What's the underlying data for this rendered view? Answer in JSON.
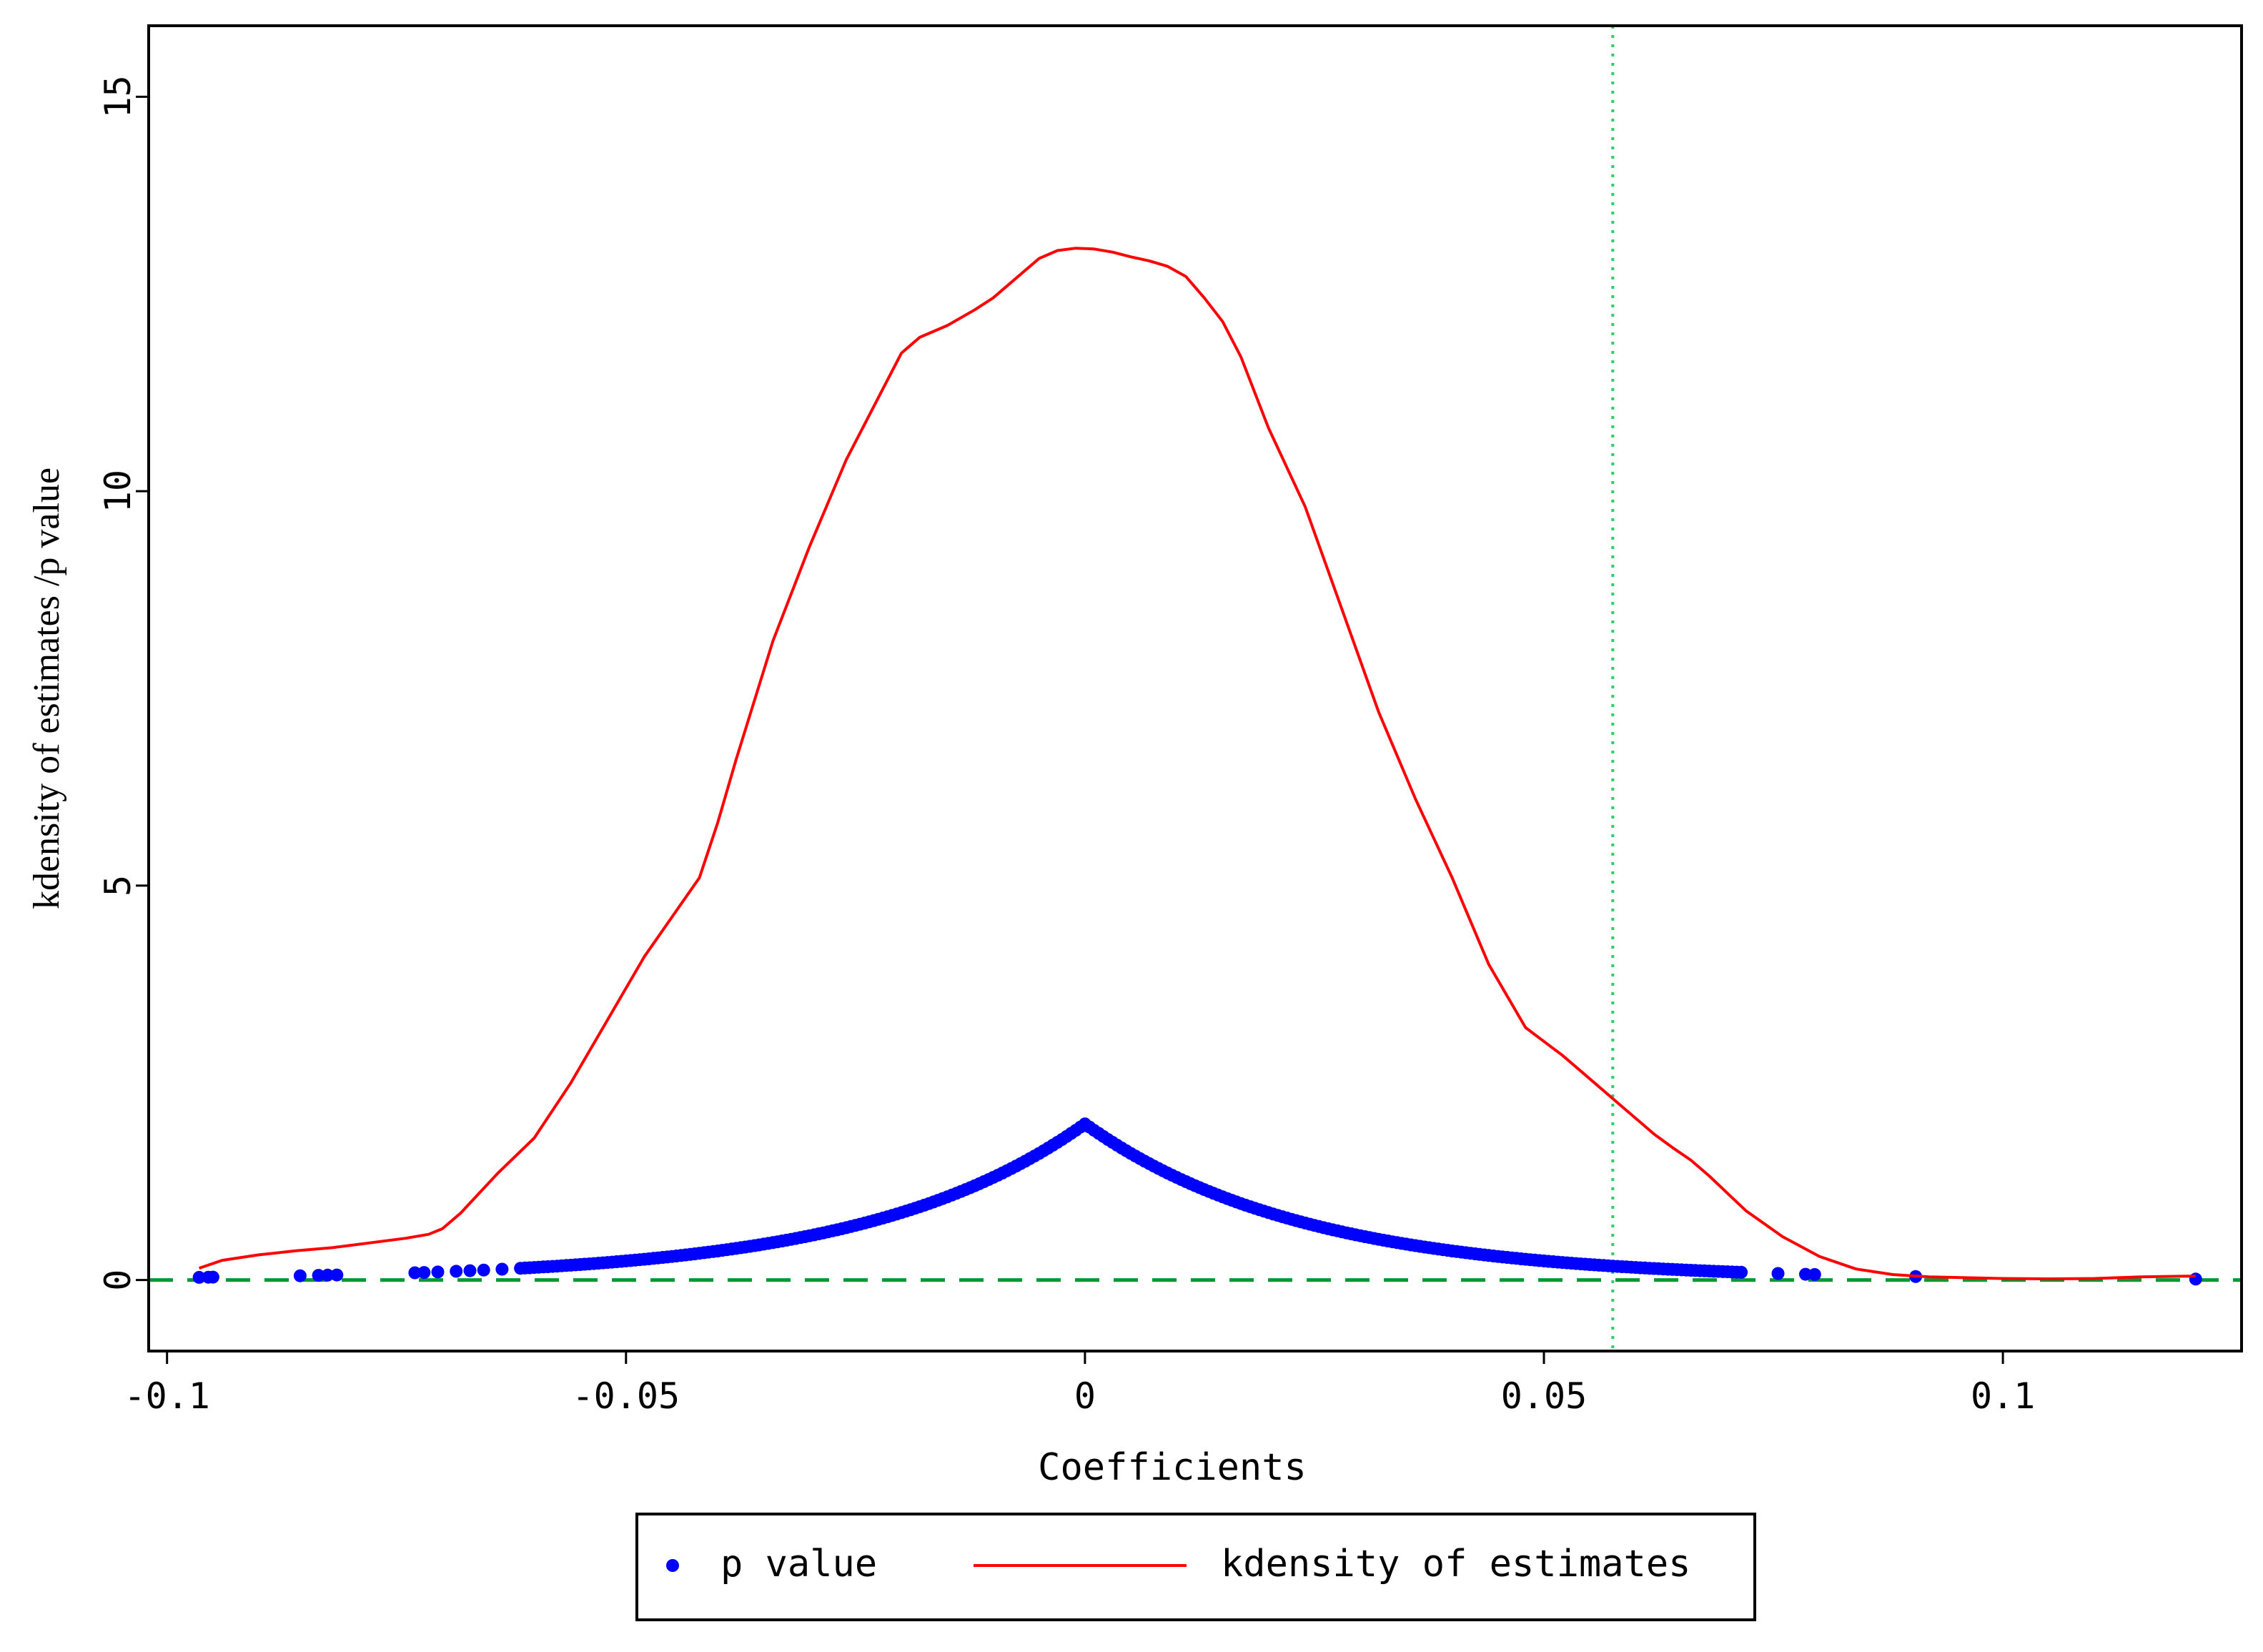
{
  "chart_data": {
    "type": "line",
    "title": "",
    "xlabel": "Coefficients",
    "ylabel": "kdensity of estimates /p value",
    "xlim": [
      -0.102,
      0.126
    ],
    "ylim": [
      -0.9,
      15.9
    ],
    "x_ticks": [
      {
        "value": -0.1,
        "label": "-0.1"
      },
      {
        "value": -0.05,
        "label": "-0.05"
      },
      {
        "value": 0,
        "label": "0"
      },
      {
        "value": 0.05,
        "label": "0.05"
      },
      {
        "value": 0.1,
        "label": "0.1"
      }
    ],
    "y_ticks": [
      {
        "value": 0,
        "label": "0"
      },
      {
        "value": 5,
        "label": "5"
      },
      {
        "value": 10,
        "label": "10"
      },
      {
        "value": 15,
        "label": "15"
      }
    ],
    "grid": false,
    "legend_position": "bottom-center",
    "reference_lines": [
      {
        "orientation": "horizontal",
        "value": 0,
        "style": "dashed",
        "color": "#009933"
      },
      {
        "orientation": "vertical",
        "value": 0.0575,
        "style": "dotted",
        "color": "#33cc66"
      }
    ],
    "series": [
      {
        "name": "p value",
        "type": "scatter",
        "color": "#0000ff",
        "points": {
          "isolated_x": [
            -0.0965,
            -0.0955,
            -0.095,
            -0.0855,
            -0.0835,
            -0.0825,
            -0.0815,
            -0.073,
            -0.072,
            -0.0705,
            -0.0685,
            -0.067,
            -0.0655,
            -0.0635,
            -0.0615,
            0.0755,
            0.0785,
            0.0795,
            0.0905,
            0.121
          ],
          "peak_y": 1.98,
          "decay_rate": 42,
          "dense_x_range": [
            -0.061,
            0.0715
          ],
          "dense_x_step": 0.0005
        }
      },
      {
        "name": "kdensity of estimates",
        "type": "line",
        "color": "#ff0000",
        "x": [
          -0.0965,
          -0.094,
          -0.09,
          -0.086,
          -0.082,
          -0.078,
          -0.074,
          -0.0715,
          -0.07,
          -0.068,
          -0.066,
          -0.064,
          -0.06,
          -0.056,
          -0.052,
          -0.048,
          -0.045,
          -0.042,
          -0.04,
          -0.038,
          -0.034,
          -0.03,
          -0.026,
          -0.022,
          -0.02,
          -0.018,
          -0.016,
          -0.015,
          -0.012,
          -0.01,
          -0.009,
          -0.007,
          -0.005,
          -0.003,
          -0.001,
          0.001,
          0.003,
          0.005,
          0.007,
          0.009,
          0.011,
          0.013,
          0.015,
          0.017,
          0.02,
          0.024,
          0.028,
          0.032,
          0.036,
          0.04,
          0.044,
          0.048,
          0.052,
          0.054,
          0.056,
          0.058,
          0.06,
          0.062,
          0.064,
          0.066,
          0.068,
          0.07,
          0.072,
          0.076,
          0.08,
          0.084,
          0.088,
          0.092,
          0.096,
          0.1,
          0.105,
          0.11,
          0.115,
          0.12,
          0.121
        ],
        "y": [
          0.15,
          0.25,
          0.32,
          0.37,
          0.41,
          0.47,
          0.53,
          0.58,
          0.65,
          0.85,
          1.1,
          1.35,
          1.8,
          2.5,
          3.3,
          4.1,
          4.6,
          5.1,
          5.8,
          6.6,
          8.1,
          9.3,
          10.4,
          11.3,
          11.75,
          11.95,
          12.05,
          12.1,
          12.3,
          12.45,
          12.55,
          12.75,
          12.95,
          13.05,
          13.08,
          13.07,
          13.03,
          12.97,
          12.92,
          12.85,
          12.72,
          12.45,
          12.15,
          11.7,
          10.8,
          9.8,
          8.5,
          7.2,
          6.1,
          5.1,
          4.0,
          3.2,
          2.85,
          2.65,
          2.45,
          2.25,
          2.05,
          1.85,
          1.68,
          1.52,
          1.32,
          1.1,
          0.88,
          0.55,
          0.3,
          0.14,
          0.07,
          0.04,
          0.03,
          0.02,
          0.015,
          0.02,
          0.04,
          0.05,
          0.05
        ]
      }
    ]
  },
  "legend": {
    "items": [
      {
        "label": "p value",
        "marker": "dot",
        "color": "#0000ff"
      },
      {
        "label": "kdensity of estimates",
        "marker": "line",
        "color": "#ff0000"
      }
    ]
  }
}
